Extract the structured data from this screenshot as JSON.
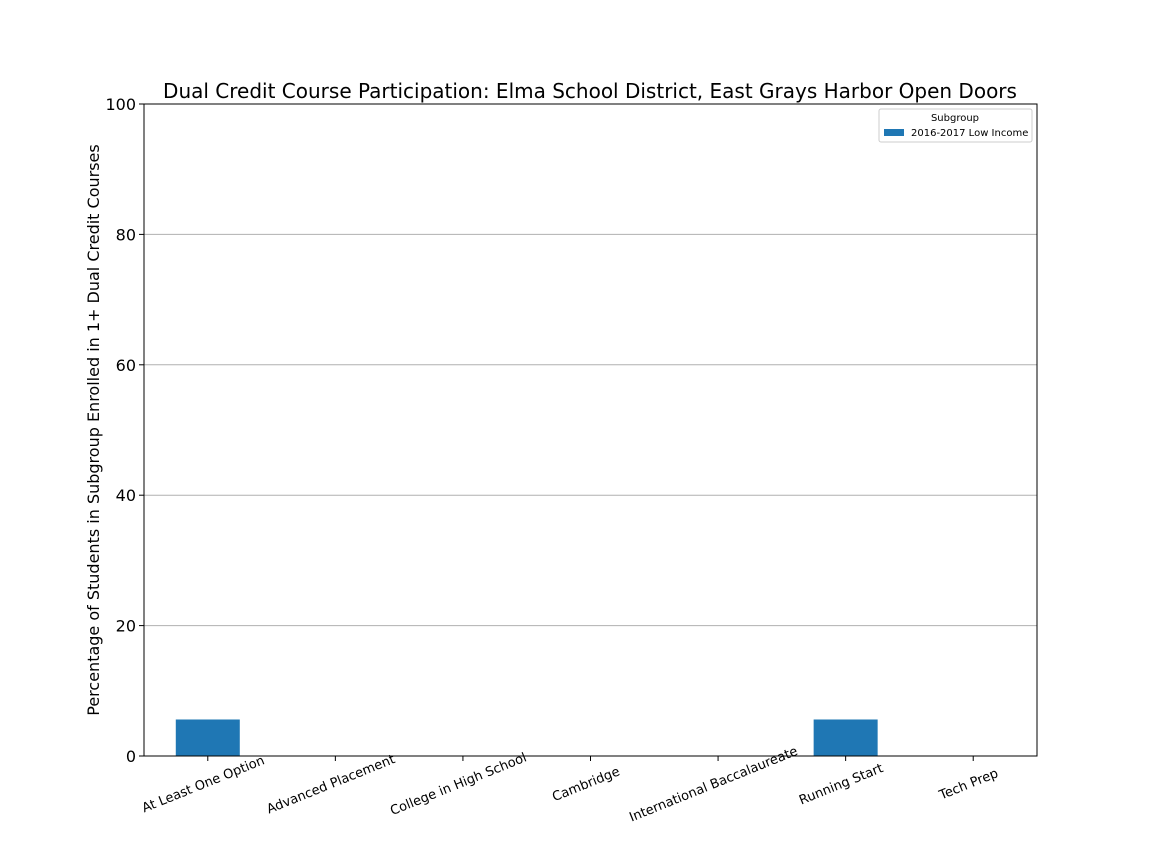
{
  "chart_data": {
    "type": "bar",
    "title": "Dual Credit Course Participation: Elma School District, East Grays Harbor Open Doors",
    "xlabel": "",
    "ylabel": "Percentage of Students in Subgroup Enrolled in 1+ Dual Credit Courses",
    "ylim": [
      0,
      100
    ],
    "yticks": [
      "0",
      "20",
      "40",
      "60",
      "80",
      "100"
    ],
    "categories": [
      "At Least One Option",
      "Advanced Placement",
      "College in High School",
      "Cambridge",
      "International Baccalaureate",
      "Running Start",
      "Tech Prep"
    ],
    "series": [
      {
        "name": "2016-2017 Low Income",
        "color": "#1f77b4",
        "values": [
          5.6,
          0,
          0,
          0,
          0,
          5.6,
          0
        ]
      }
    ],
    "grid": "y-major",
    "legend": {
      "title": "Subgroup",
      "placement": "top-right"
    }
  }
}
